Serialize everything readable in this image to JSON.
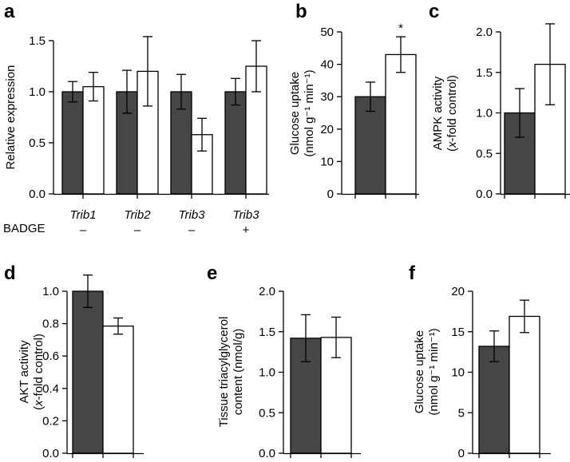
{
  "colors": {
    "dark_bar": "#464646",
    "light_bar": "#ffffff"
  },
  "chart_data": [
    {
      "id": "a",
      "type": "bar",
      "letter": "a",
      "ylabel": [
        "Relative expression"
      ],
      "ylim": [
        0,
        1.5
      ],
      "yticks": [
        "0.0",
        "0.5",
        "1.0",
        "1.5"
      ],
      "groups": [
        "Trib1",
        "Trib2",
        "Trib3",
        "Trib3"
      ],
      "badge_label": "BADGE",
      "badge_values": [
        "–",
        "–",
        "–",
        "+"
      ],
      "series": [
        {
          "fill": "dark",
          "values": [
            1.0,
            1.0,
            1.0,
            1.0
          ],
          "errors": [
            0.1,
            0.21,
            0.17,
            0.13
          ]
        },
        {
          "fill": "light",
          "values": [
            1.05,
            1.2,
            0.58,
            1.25
          ],
          "errors": [
            0.14,
            0.34,
            0.16,
            0.25
          ]
        }
      ],
      "annotations": []
    },
    {
      "id": "b",
      "type": "bar",
      "letter": "b",
      "ylabel": [
        "Glucose uptake",
        "(nmol g⁻¹ min⁻¹)"
      ],
      "ylim": [
        0,
        50
      ],
      "yticks": [
        "0",
        "10",
        "20",
        "30",
        "40",
        "50"
      ],
      "series": [
        {
          "fill": "dark",
          "values": [
            30
          ],
          "errors": [
            4.5
          ]
        },
        {
          "fill": "light",
          "values": [
            43
          ],
          "errors": [
            5.5
          ]
        }
      ],
      "annotations": [
        "*"
      ]
    },
    {
      "id": "c",
      "type": "bar",
      "letter": "c",
      "ylabel": [
        "AMPK activity",
        "(x-fold control)"
      ],
      "ylim": [
        0,
        2.0
      ],
      "yticks": [
        "0.0",
        "0.5",
        "1.0",
        "1.5",
        "2.0"
      ],
      "series": [
        {
          "fill": "dark",
          "values": [
            1.0
          ],
          "errors": [
            0.3
          ]
        },
        {
          "fill": "light",
          "values": [
            1.6
          ],
          "errors": [
            0.5
          ]
        }
      ],
      "annotations": []
    },
    {
      "id": "d",
      "type": "bar",
      "letter": "d",
      "ylabel": [
        "AKT activity",
        "(x-fold control)"
      ],
      "ylim": [
        0,
        1.0
      ],
      "yticks": [
        "0.0",
        "0.2",
        "0.4",
        "0.6",
        "0.8",
        "1.0"
      ],
      "series": [
        {
          "fill": "dark",
          "values": [
            1.0
          ],
          "errors": [
            0.1
          ]
        },
        {
          "fill": "light",
          "values": [
            0.785
          ],
          "errors": [
            0.05
          ]
        }
      ],
      "annotations": []
    },
    {
      "id": "e",
      "type": "bar",
      "letter": "e",
      "ylabel": [
        "Tissue triacylglycerol",
        "content (nmol/g)"
      ],
      "ylim": [
        0,
        2.0
      ],
      "yticks": [
        "0.0",
        "0.5",
        "1.0",
        "1.5",
        "2.0"
      ],
      "series": [
        {
          "fill": "dark",
          "values": [
            1.42
          ],
          "errors": [
            0.29
          ]
        },
        {
          "fill": "light",
          "values": [
            1.43
          ],
          "errors": [
            0.25
          ]
        }
      ],
      "annotations": []
    },
    {
      "id": "f",
      "type": "bar",
      "letter": "f",
      "ylabel": [
        "Glucose uptake",
        "(nmol g⁻¹ min⁻¹)"
      ],
      "ylim": [
        0,
        20
      ],
      "yticks": [
        "0",
        "5",
        "10",
        "15",
        "20"
      ],
      "series": [
        {
          "fill": "dark",
          "values": [
            13.2
          ],
          "errors": [
            1.9
          ]
        },
        {
          "fill": "light",
          "values": [
            16.9
          ],
          "errors": [
            2.0
          ]
        }
      ],
      "annotations": []
    }
  ]
}
